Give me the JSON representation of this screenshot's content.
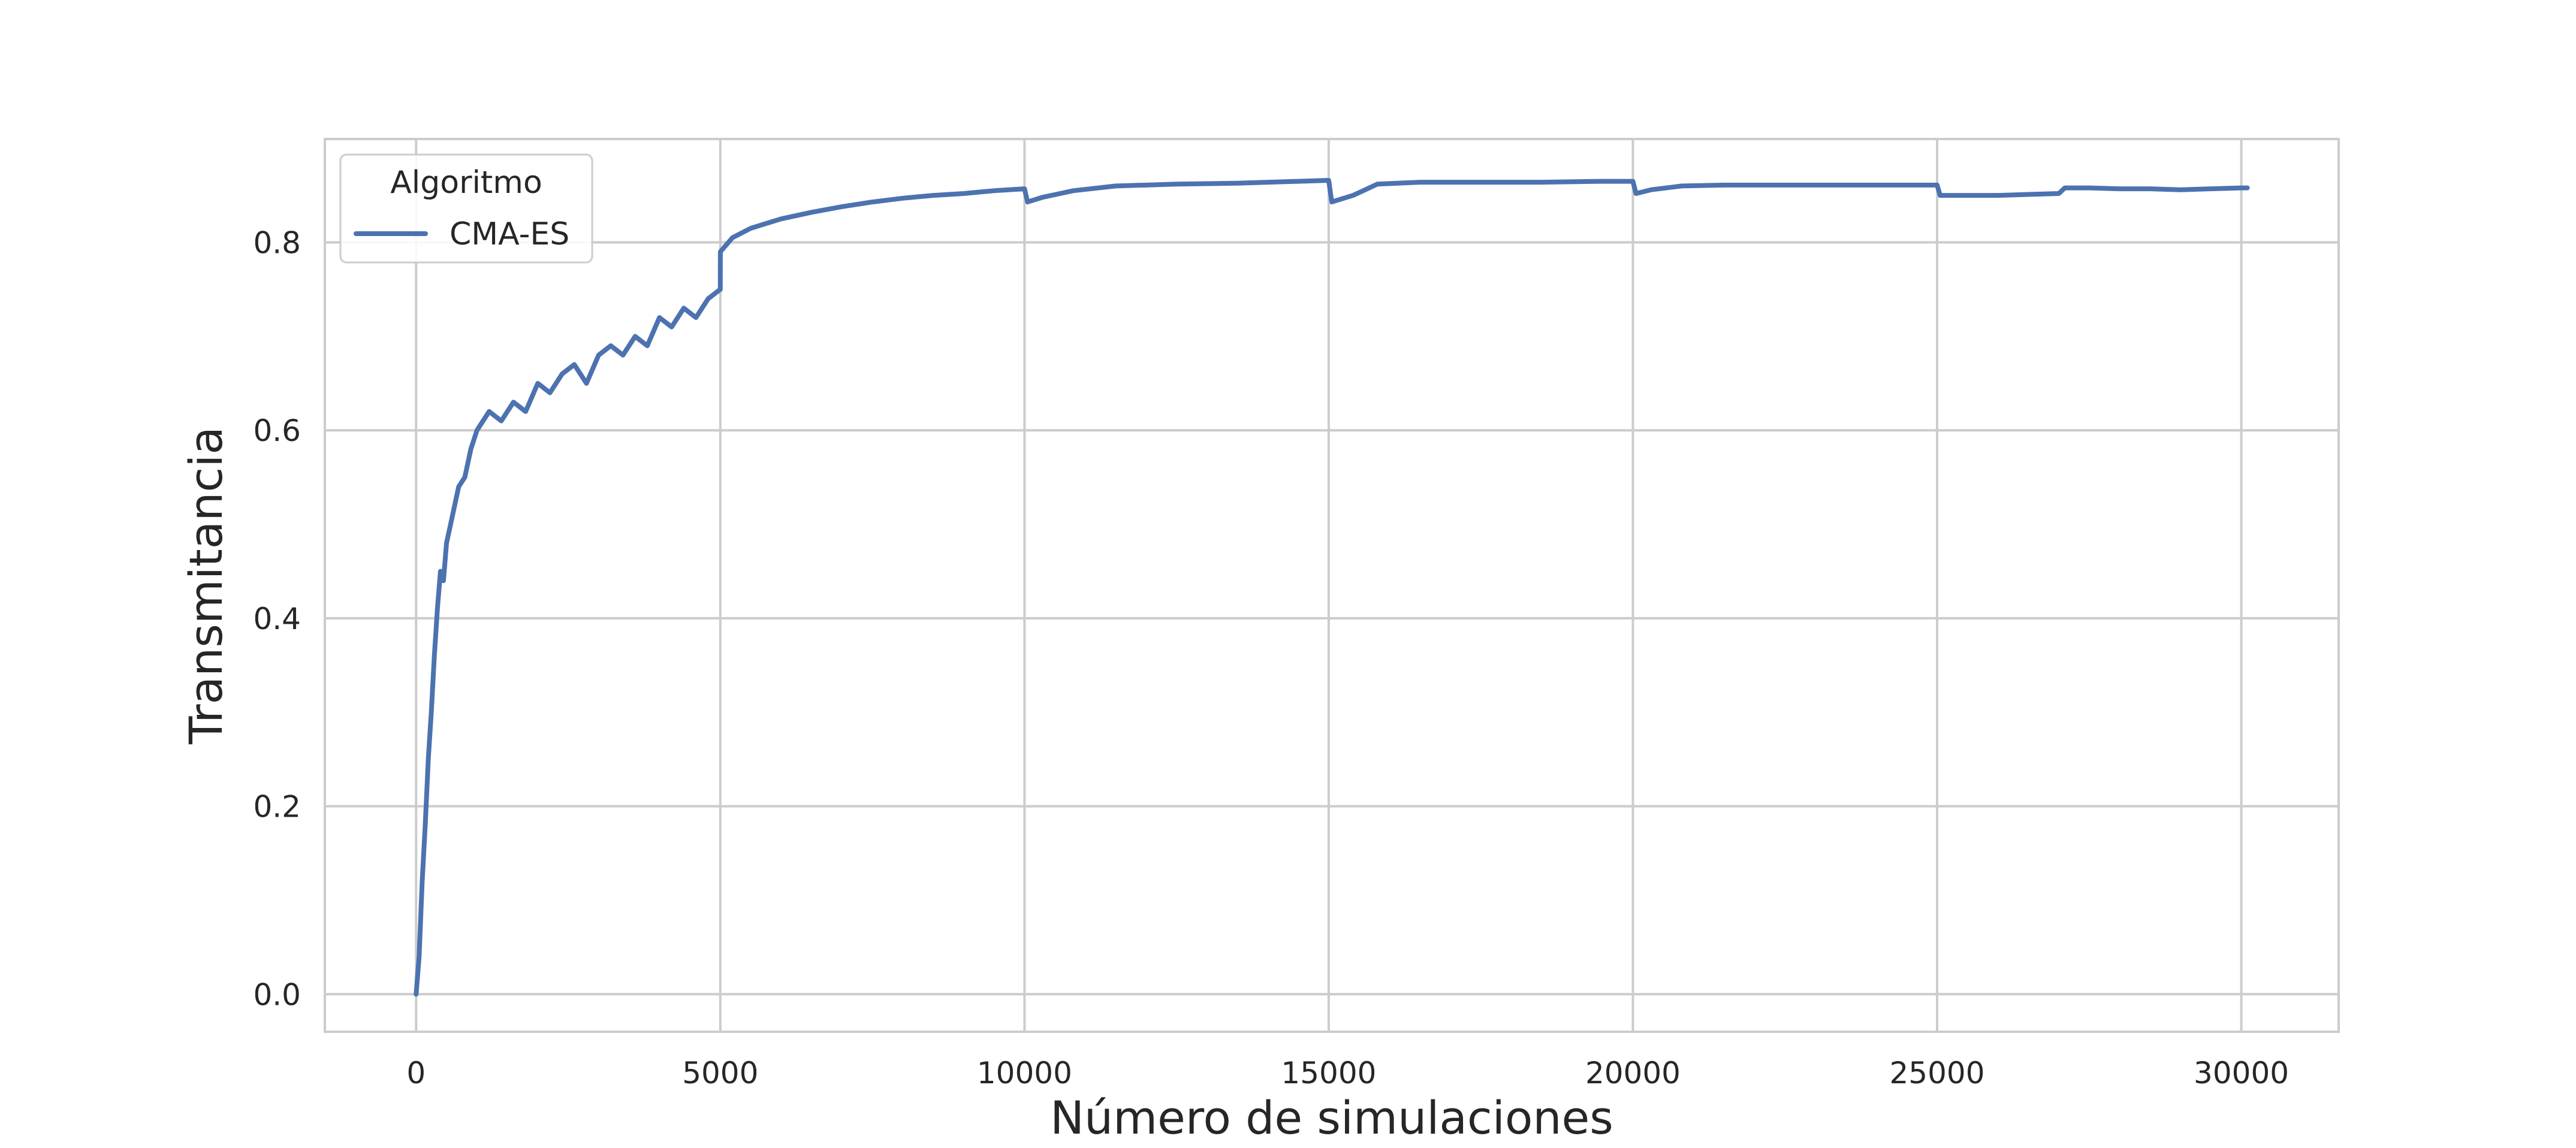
{
  "chart_data": {
    "type": "line",
    "title": "",
    "xlabel": "Número de simulaciones",
    "ylabel": "Transmitancia",
    "xlim": [
      -1500,
      31600
    ],
    "ylim": [
      -0.04,
      0.91
    ],
    "xticks": [
      0,
      5000,
      10000,
      15000,
      20000,
      25000,
      30000
    ],
    "yticks": [
      0.0,
      0.2,
      0.4,
      0.6,
      0.8
    ],
    "xtick_labels": [
      "0",
      "5000",
      "10000",
      "15000",
      "20000",
      "25000",
      "30000"
    ],
    "ytick_labels": [
      "0.0",
      "0.2",
      "0.4",
      "0.6",
      "0.8"
    ],
    "grid": true,
    "legend": {
      "title": "Algoritmo",
      "position": "top-left",
      "entries": [
        "CMA-ES"
      ]
    },
    "series": [
      {
        "name": "CMA-ES",
        "color": "#4c72b0",
        "x": [
          0,
          50,
          100,
          150,
          200,
          250,
          300,
          350,
          400,
          450,
          500,
          600,
          700,
          800,
          900,
          1000,
          1200,
          1400,
          1600,
          1800,
          2000,
          2200,
          2400,
          2600,
          2800,
          3000,
          3200,
          3400,
          3600,
          3800,
          4000,
          4200,
          4400,
          4600,
          4800,
          5000,
          5001,
          5200,
          5500,
          6000,
          6500,
          7000,
          7500,
          8000,
          8500,
          9000,
          9500,
          10000,
          10050,
          10300,
          10800,
          11500,
          12500,
          13500,
          14500,
          15000,
          15050,
          15400,
          15800,
          16500,
          17500,
          18500,
          19500,
          20000,
          20050,
          20300,
          20800,
          21500,
          22500,
          23500,
          24500,
          25000,
          25050,
          25500,
          26000,
          26500,
          27000,
          27100,
          27500,
          28000,
          28500,
          29000,
          29500,
          30000,
          30100
        ],
        "values": [
          0.0,
          0.04,
          0.12,
          0.18,
          0.25,
          0.3,
          0.36,
          0.41,
          0.45,
          0.44,
          0.48,
          0.51,
          0.54,
          0.55,
          0.58,
          0.6,
          0.62,
          0.61,
          0.63,
          0.62,
          0.65,
          0.64,
          0.66,
          0.67,
          0.65,
          0.68,
          0.69,
          0.68,
          0.7,
          0.69,
          0.72,
          0.71,
          0.73,
          0.72,
          0.74,
          0.75,
          0.79,
          0.805,
          0.815,
          0.825,
          0.832,
          0.838,
          0.843,
          0.847,
          0.85,
          0.852,
          0.855,
          0.857,
          0.843,
          0.848,
          0.855,
          0.86,
          0.862,
          0.863,
          0.865,
          0.866,
          0.843,
          0.85,
          0.862,
          0.864,
          0.864,
          0.864,
          0.865,
          0.865,
          0.852,
          0.856,
          0.86,
          0.861,
          0.861,
          0.861,
          0.861,
          0.861,
          0.85,
          0.85,
          0.85,
          0.851,
          0.852,
          0.858,
          0.858,
          0.857,
          0.857,
          0.856,
          0.857,
          0.858,
          0.858
        ]
      }
    ]
  }
}
